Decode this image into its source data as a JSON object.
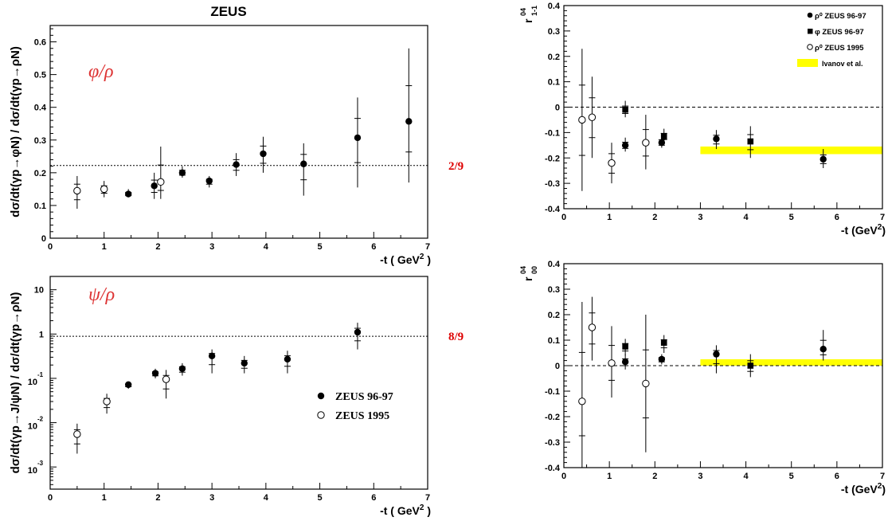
{
  "figure_title": "ZEUS",
  "chart_data": [
    {
      "id": "phi_rho",
      "type": "scatter",
      "scale": "linear",
      "xlim": [
        0,
        7
      ],
      "ylim": [
        0,
        0.65
      ],
      "xticks": [
        0,
        1,
        2,
        3,
        4,
        5,
        6,
        7
      ],
      "yticks": [
        0,
        0.1,
        0.2,
        0.3,
        0.4,
        0.5,
        0.6
      ],
      "ytick_labels": [
        "0",
        "0.1",
        "0.2",
        "0.3",
        "0.4",
        "0.5",
        "0.6"
      ],
      "xlabel": "-t ( GeV",
      "xlabel_sup": "2",
      "xlabel_tail": " )",
      "ylabel": "dσ/dt(γp→φN) / dσ/dt(γp→ρN)",
      "annotation": "φ/ρ",
      "ref_line": {
        "value": 0.222,
        "label": "2/9",
        "color": "#dd0000"
      },
      "series": [
        {
          "name": "ZEUS 96-97",
          "marker": "filled-circle",
          "points": [
            {
              "x": 1.45,
              "y": 0.135,
              "lo": 0.125,
              "hi": 0.15
            },
            {
              "x": 1.93,
              "y": 0.16,
              "lo": 0.12,
              "hi": 0.2
            },
            {
              "x": 2.45,
              "y": 0.2,
              "lo": 0.185,
              "hi": 0.22
            },
            {
              "x": 2.95,
              "y": 0.175,
              "lo": 0.155,
              "hi": 0.19
            },
            {
              "x": 3.45,
              "y": 0.225,
              "lo": 0.19,
              "hi": 0.26
            },
            {
              "x": 3.95,
              "y": 0.258,
              "lo": 0.2,
              "hi": 0.31
            },
            {
              "x": 4.7,
              "y": 0.227,
              "lo": 0.13,
              "hi": 0.29
            },
            {
              "x": 5.7,
              "y": 0.307,
              "lo": 0.155,
              "hi": 0.43
            },
            {
              "x": 6.65,
              "y": 0.357,
              "lo": 0.17,
              "hi": 0.58
            }
          ]
        },
        {
          "name": "ZEUS 1995",
          "marker": "open-circle",
          "points": [
            {
              "x": 0.5,
              "y": 0.145,
              "lo": 0.09,
              "hi": 0.19
            },
            {
              "x": 1.0,
              "y": 0.15,
              "lo": 0.125,
              "hi": 0.175
            },
            {
              "x": 2.05,
              "y": 0.172,
              "lo": 0.12,
              "hi": 0.28
            }
          ]
        }
      ]
    },
    {
      "id": "psi_rho",
      "type": "scatter",
      "scale": "log",
      "xlim": [
        0,
        7
      ],
      "ylim_log": [
        -3.5,
        1.3
      ],
      "xticks": [
        0,
        1,
        2,
        3,
        4,
        5,
        6,
        7
      ],
      "yticks_log": [
        -3,
        -2,
        -1,
        0,
        1
      ],
      "ytick_labels": [
        {
          "base": "10",
          "exp": "-3"
        },
        {
          "base": "10",
          "exp": "-2"
        },
        {
          "base": "10",
          "exp": "-1"
        },
        {
          "base": "1",
          "exp": ""
        },
        {
          "base": "10",
          "exp": ""
        }
      ],
      "xlabel": "-t ( GeV",
      "xlabel_sup": "2",
      "xlabel_tail": " )",
      "ylabel": "dσ/dt(γp→J/ψN) / dσ/dt(γp→ρN)",
      "annotation": "ψ/ρ",
      "ref_line": {
        "value": 0.889,
        "label": "8/9",
        "color": "#dd0000"
      },
      "legend": [
        {
          "label": "ZEUS 96-97",
          "marker": "filled-circle"
        },
        {
          "label": "ZEUS 1995",
          "marker": "open-circle"
        }
      ],
      "series": [
        {
          "name": "ZEUS 96-97",
          "marker": "filled-circle",
          "points": [
            {
              "x": 1.45,
              "y": 0.072,
              "lo": 0.058,
              "hi": 0.085
            },
            {
              "x": 1.95,
              "y": 0.13,
              "lo": 0.1,
              "hi": 0.165
            },
            {
              "x": 2.45,
              "y": 0.165,
              "lo": 0.115,
              "hi": 0.22
            },
            {
              "x": 3.0,
              "y": 0.32,
              "lo": 0.13,
              "hi": 0.45
            },
            {
              "x": 3.6,
              "y": 0.22,
              "lo": 0.13,
              "hi": 0.32
            },
            {
              "x": 4.4,
              "y": 0.27,
              "lo": 0.13,
              "hi": 0.42
            },
            {
              "x": 5.7,
              "y": 1.1,
              "lo": 0.45,
              "hi": 1.8
            }
          ]
        },
        {
          "name": "ZEUS 1995",
          "marker": "open-circle",
          "points": [
            {
              "x": 0.5,
              "y": 0.0055,
              "lo": 0.002,
              "hi": 0.0095
            },
            {
              "x": 1.05,
              "y": 0.03,
              "lo": 0.016,
              "hi": 0.045
            },
            {
              "x": 2.15,
              "y": 0.095,
              "lo": 0.035,
              "hi": 0.155
            }
          ]
        }
      ]
    },
    {
      "id": "r04_1m1",
      "type": "scatter",
      "scale": "linear",
      "xlim": [
        0,
        7
      ],
      "ylim": [
        -0.4,
        0.4
      ],
      "xticks": [
        0,
        1,
        2,
        3,
        4,
        5,
        6,
        7
      ],
      "yticks": [
        -0.4,
        -0.3,
        -0.2,
        -0.1,
        0,
        0.1,
        0.2,
        0.3,
        0.4
      ],
      "ytick_labels": [
        "-0.4",
        "-0.3",
        "-0.2",
        "-0.1",
        "0",
        "0.1",
        "0.2",
        "0.3",
        "0.4"
      ],
      "xlabel": "-t (GeV",
      "xlabel_sup": "2",
      "xlabel_tail": ")",
      "ylabel_main": "r",
      "ylabel_sup": "04",
      "ylabel_sub": "1-1",
      "zero_line": true,
      "band": {
        "x0": 3.0,
        "x1": 7.0,
        "y0": -0.185,
        "y1": -0.155,
        "color": "#ffff00",
        "name": "Ivanov et al."
      },
      "legend": [
        {
          "label": "ρ⁰ ZEUS 96-97",
          "marker": "filled-circle"
        },
        {
          "label": "φ ZEUS 96-97",
          "marker": "filled-square"
        },
        {
          "label": "ρ⁰ ZEUS 1995",
          "marker": "open-circle"
        },
        {
          "label": "Ivanov et al.",
          "marker": "band"
        }
      ],
      "series": [
        {
          "name": "ρ⁰ ZEUS 96-97",
          "marker": "filled-circle",
          "points": [
            {
              "x": 1.35,
              "y": -0.15,
              "lo": -0.175,
              "hi": -0.12
            },
            {
              "x": 2.15,
              "y": -0.14,
              "lo": -0.16,
              "hi": -0.11
            },
            {
              "x": 3.35,
              "y": -0.125,
              "lo": -0.165,
              "hi": -0.09
            },
            {
              "x": 5.7,
              "y": -0.205,
              "lo": -0.24,
              "hi": -0.165
            }
          ]
        },
        {
          "name": "φ ZEUS 96-97",
          "marker": "filled-square",
          "points": [
            {
              "x": 1.35,
              "y": -0.01,
              "lo": -0.04,
              "hi": 0.025
            },
            {
              "x": 2.2,
              "y": -0.115,
              "lo": -0.14,
              "hi": -0.085
            },
            {
              "x": 4.1,
              "y": -0.135,
              "lo": -0.2,
              "hi": -0.075
            }
          ]
        },
        {
          "name": "ρ⁰ ZEUS 1995",
          "marker": "open-circle",
          "points": [
            {
              "x": 0.4,
              "y": -0.05,
              "lo": -0.33,
              "hi": 0.23
            },
            {
              "x": 0.62,
              "y": -0.04,
              "lo": -0.2,
              "hi": 0.12
            },
            {
              "x": 1.05,
              "y": -0.22,
              "lo": -0.3,
              "hi": -0.14
            },
            {
              "x": 1.8,
              "y": -0.14,
              "lo": -0.245,
              "hi": -0.03
            }
          ]
        }
      ]
    },
    {
      "id": "r04_00",
      "type": "scatter",
      "scale": "linear",
      "xlim": [
        0,
        7
      ],
      "ylim": [
        -0.4,
        0.4
      ],
      "xticks": [
        0,
        1,
        2,
        3,
        4,
        5,
        6,
        7
      ],
      "yticks": [
        -0.4,
        -0.3,
        -0.2,
        -0.1,
        0,
        0.1,
        0.2,
        0.3,
        0.4
      ],
      "ytick_labels": [
        "-0.4",
        "-0.3",
        "-0.2",
        "-0.1",
        "0",
        "0.1",
        "0.2",
        "0.3",
        "0.4"
      ],
      "xlabel": "-t (GeV",
      "xlabel_sup": "2",
      "xlabel_tail": ")",
      "ylabel_main": "r",
      "ylabel_sup": "04",
      "ylabel_sub": "00",
      "zero_line": true,
      "band": {
        "x0": 3.0,
        "x1": 7.0,
        "y0": 0.0,
        "y1": 0.025,
        "color": "#ffff00",
        "name": "Ivanov et al."
      },
      "series": [
        {
          "name": "ρ⁰ ZEUS 96-97",
          "marker": "filled-circle",
          "points": [
            {
              "x": 1.35,
              "y": 0.015,
              "lo": -0.015,
              "hi": 0.045
            },
            {
              "x": 2.15,
              "y": 0.025,
              "lo": 0.005,
              "hi": 0.045
            },
            {
              "x": 3.35,
              "y": 0.045,
              "lo": -0.03,
              "hi": 0.08
            },
            {
              "x": 5.7,
              "y": 0.065,
              "lo": 0.02,
              "hi": 0.14
            }
          ]
        },
        {
          "name": "φ ZEUS 96-97",
          "marker": "filled-square",
          "points": [
            {
              "x": 1.35,
              "y": 0.075,
              "lo": 0.04,
              "hi": 0.105
            },
            {
              "x": 2.2,
              "y": 0.09,
              "lo": 0.05,
              "hi": 0.12
            },
            {
              "x": 4.1,
              "y": 0.0,
              "lo": -0.045,
              "hi": 0.045
            }
          ]
        },
        {
          "name": "ρ⁰ ZEUS 1995",
          "marker": "open-circle",
          "points": [
            {
              "x": 0.4,
              "y": -0.14,
              "lo": -0.41,
              "hi": 0.25
            },
            {
              "x": 0.62,
              "y": 0.15,
              "lo": 0.02,
              "hi": 0.27
            },
            {
              "x": 1.05,
              "y": 0.01,
              "lo": -0.125,
              "hi": 0.155
            },
            {
              "x": 1.8,
              "y": -0.07,
              "lo": -0.34,
              "hi": 0.2
            }
          ]
        }
      ]
    }
  ]
}
